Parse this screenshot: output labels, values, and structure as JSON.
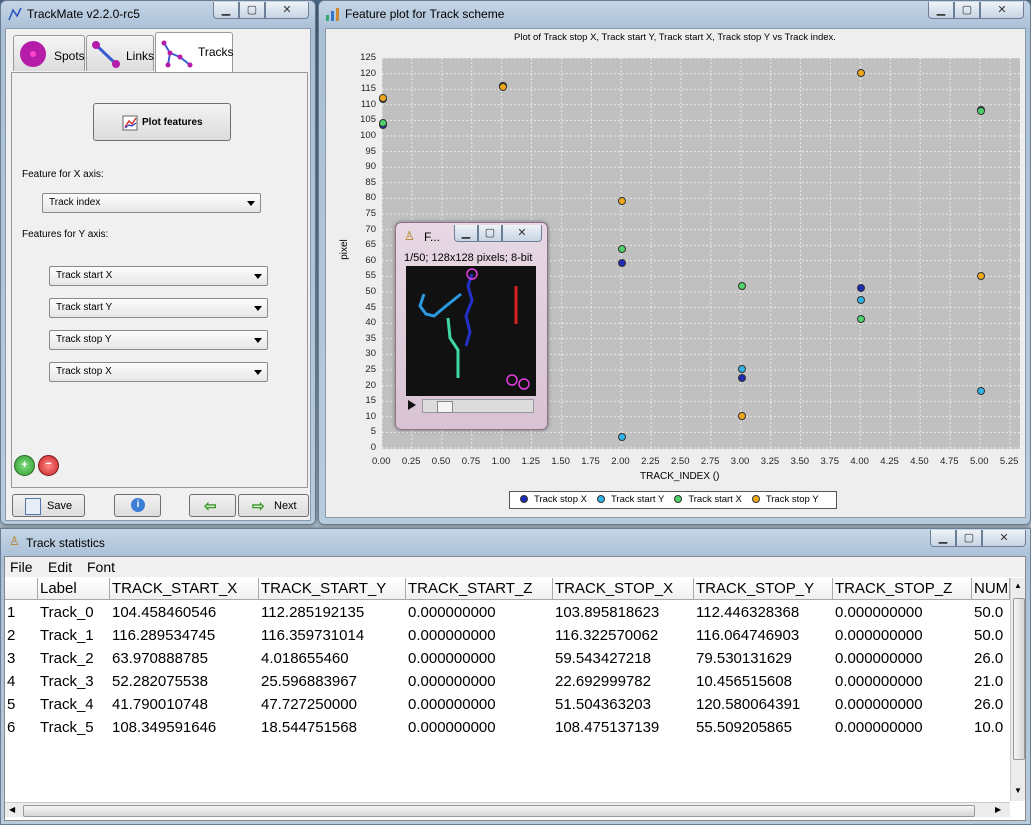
{
  "trackmate": {
    "title": "TrackMate v2.2.0-rc5",
    "tabs": [
      {
        "label": "Spots"
      },
      {
        "label": "Links"
      },
      {
        "label": "Tracks"
      }
    ],
    "plot_button": "Plot features",
    "x_label": "Feature for X axis:",
    "x_feature": "Track index",
    "y_label": "Features for Y axis:",
    "y_features": [
      "Track start X",
      "Track start Y",
      "Track stop Y",
      "Track stop X"
    ],
    "save": "Save",
    "next": "Next"
  },
  "plotwin": {
    "title": "Feature plot for Track scheme"
  },
  "chart_data": {
    "type": "scatter",
    "title": "Plot of Track stop X, Track start Y, Track start X, Track stop Y vs Track index.",
    "xlabel": "TRACK_INDEX ()",
    "ylabel": "pixel",
    "xlim": [
      0,
      5.25
    ],
    "ylim": [
      0,
      125
    ],
    "x_ticks": [
      "0.00",
      "0.25",
      "0.50",
      "0.75",
      "1.00",
      "1.25",
      "1.50",
      "1.75",
      "2.00",
      "2.25",
      "2.50",
      "2.75",
      "3.00",
      "3.25",
      "3.50",
      "3.75",
      "4.00",
      "4.25",
      "4.50",
      "4.75",
      "5.00",
      "5.25"
    ],
    "y_ticks": [
      "0",
      "5",
      "10",
      "15",
      "20",
      "25",
      "30",
      "35",
      "40",
      "45",
      "50",
      "55",
      "60",
      "65",
      "70",
      "75",
      "80",
      "85",
      "90",
      "95",
      "100",
      "105",
      "110",
      "115",
      "120",
      "125"
    ],
    "x": [
      0,
      1,
      2,
      3,
      4,
      5
    ],
    "grid": true,
    "legend_position": "bottom",
    "series": [
      {
        "name": "Track stop X",
        "color": "#1f2bb5",
        "values": [
          103.9,
          116.3,
          59.5,
          22.7,
          51.5,
          108.5
        ]
      },
      {
        "name": "Track start Y",
        "color": "#30b4e8",
        "values": [
          112.3,
          116.4,
          4.0,
          25.6,
          47.7,
          18.5
        ]
      },
      {
        "name": "Track start X",
        "color": "#4fd16b",
        "values": [
          104.5,
          116.3,
          64.0,
          52.3,
          41.8,
          108.3
        ]
      },
      {
        "name": "Track stop Y",
        "color": "#f0a818",
        "values": [
          112.4,
          116.1,
          79.5,
          10.5,
          120.6,
          55.5
        ]
      }
    ]
  },
  "imagewin": {
    "title": "F...",
    "info": "1/50; 128x128 pixels; 8-bit"
  },
  "stats": {
    "title": "Track statistics",
    "menu": [
      "File",
      "Edit",
      "Font"
    ],
    "columns": [
      "",
      "Label",
      "TRACK_START_X",
      "TRACK_START_Y",
      "TRACK_START_Z",
      "TRACK_STOP_X",
      "TRACK_STOP_Y",
      "TRACK_STOP_Z",
      "NUM"
    ],
    "rows": [
      [
        "1",
        "Track_0",
        "104.458460546",
        "112.285192135",
        "0.000000000",
        "103.895818623",
        "112.446328368",
        "0.000000000",
        "50.0"
      ],
      [
        "2",
        "Track_1",
        "116.289534745",
        "116.359731014",
        "0.000000000",
        "116.322570062",
        "116.064746903",
        "0.000000000",
        "50.0"
      ],
      [
        "3",
        "Track_2",
        "63.970888785",
        "4.018655460",
        "0.000000000",
        "59.543427218",
        "79.530131629",
        "0.000000000",
        "26.0"
      ],
      [
        "4",
        "Track_3",
        "52.282075538",
        "25.596883967",
        "0.000000000",
        "22.692999782",
        "10.456515608",
        "0.000000000",
        "21.0"
      ],
      [
        "5",
        "Track_4",
        "41.790010748",
        "47.727250000",
        "0.000000000",
        "51.504363203",
        "120.580064391",
        "0.000000000",
        "26.0"
      ],
      [
        "6",
        "Track_5",
        "108.349591646",
        "18.544751568",
        "0.000000000",
        "108.475137139",
        "55.509205865",
        "0.000000000",
        "10.0"
      ]
    ]
  }
}
